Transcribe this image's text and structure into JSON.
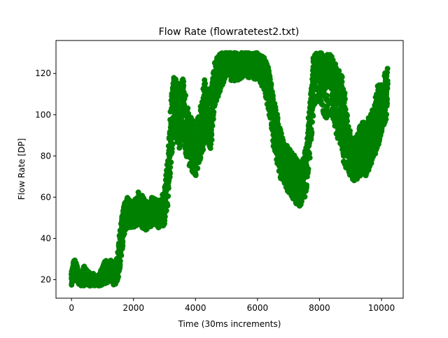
{
  "chart_data": {
    "type": "scatter",
    "title": "Flow Rate (flowratetest2.txt)",
    "xlabel": "Time (30ms increments)",
    "ylabel": "Flow Rate [DP]",
    "xlim": [
      -500,
      10700
    ],
    "ylim": [
      11,
      136
    ],
    "xticks": [
      0,
      2000,
      4000,
      6000,
      8000,
      10000
    ],
    "yticks": [
      20,
      40,
      60,
      80,
      100,
      120
    ],
    "grid": false,
    "marker_color": "#008000",
    "series": [
      {
        "x": [
          0,
          100,
          200,
          300,
          400,
          500,
          600,
          700,
          800,
          900,
          1000,
          1100,
          1200,
          1300,
          1400,
          1500,
          1600,
          1700,
          1800,
          1900,
          2000,
          2100,
          2200,
          2300,
          2400,
          2500,
          2600,
          2700,
          2800,
          2900,
          3000,
          3100,
          3200,
          3300,
          3400,
          3500,
          3600,
          3700,
          3800,
          3900,
          4000,
          4100,
          4200,
          4300,
          4400,
          4500,
          4600,
          4700,
          4800,
          4900,
          5000,
          5100,
          5200,
          5300,
          5400,
          5500,
          5600,
          5700,
          5800,
          5900,
          6000,
          6100,
          6200,
          6300,
          6400,
          6500,
          6600,
          6700,
          6800,
          6900,
          7000,
          7100,
          7200,
          7300,
          7400,
          7500,
          7600,
          7700,
          7800,
          7900,
          8000,
          8100,
          8200,
          8300,
          8400,
          8500,
          8600,
          8700,
          8800,
          8900,
          9000,
          9100,
          9200,
          9300,
          9400,
          9500,
          9600,
          9700,
          9800,
          9900,
          10000,
          10100,
          10200
        ],
        "y": [
          20,
          28,
          22,
          19,
          24,
          21,
          20,
          21,
          19,
          20,
          22,
          25,
          23,
          24,
          22,
          28,
          40,
          50,
          55,
          52,
          50,
          53,
          55,
          54,
          50,
          51,
          53,
          52,
          50,
          53,
          55,
          70,
          90,
          115,
          100,
          95,
          112,
          93,
          88,
          85,
          80,
          87,
          95,
          105,
          100,
          95,
          115,
          118,
          125,
          128,
          127,
          127,
          126,
          128,
          126,
          127,
          128,
          127,
          127,
          126,
          127,
          126,
          125,
          122,
          115,
          100,
          95,
          85,
          80,
          75,
          77,
          74,
          72,
          68,
          65,
          70,
          80,
          95,
          118,
          128,
          125,
          122,
          118,
          124,
          120,
          115,
          112,
          108,
          100,
          85,
          80,
          75,
          78,
          83,
          88,
          82,
          85,
          90,
          95,
          97,
          100,
          105,
          115
        ],
        "low": [
          17,
          20,
          18,
          17,
          17,
          17,
          17,
          17,
          17,
          17,
          17,
          18,
          19,
          18,
          17,
          20,
          30,
          42,
          45,
          45,
          45,
          46,
          47,
          45,
          44,
          45,
          46,
          46,
          45,
          46,
          46,
          55,
          75,
          90,
          85,
          82,
          90,
          80,
          75,
          72,
          70,
          75,
          80,
          85,
          85,
          82,
          100,
          108,
          110,
          115,
          120,
          118,
          115,
          116,
          117,
          118,
          119,
          118,
          118,
          117,
          116,
          115,
          112,
          105,
          98,
          85,
          80,
          70,
          68,
          65,
          62,
          60,
          58,
          55,
          54,
          58,
          65,
          80,
          100,
          110,
          105,
          102,
          98,
          100,
          98,
          92,
          88,
          85,
          75,
          70,
          70,
          68,
          68,
          70,
          72,
          70,
          72,
          78,
          80,
          85,
          90,
          95,
          98
        ],
        "high": [
          24,
          31,
          26,
          22,
          27,
          25,
          23,
          23,
          21,
          23,
          26,
          30,
          28,
          30,
          26,
          35,
          48,
          57,
          60,
          58,
          58,
          60,
          64,
          60,
          58,
          58,
          60,
          60,
          58,
          60,
          65,
          78,
          105,
          120,
          118,
          112,
          118,
          108,
          100,
          98,
          95,
          100,
          108,
          118,
          115,
          112,
          125,
          128,
          130,
          130,
          130,
          130,
          130,
          130,
          130,
          130,
          130,
          130,
          130,
          130,
          130,
          129,
          128,
          125,
          120,
          110,
          105,
          95,
          90,
          85,
          85,
          82,
          80,
          78,
          75,
          80,
          90,
          108,
          128,
          130,
          130,
          130,
          128,
          130,
          128,
          125,
          122,
          120,
          115,
          98,
          92,
          88,
          90,
          95,
          98,
          95,
          100,
          105,
          110,
          115,
          118,
          120,
          123
        ]
      }
    ]
  }
}
